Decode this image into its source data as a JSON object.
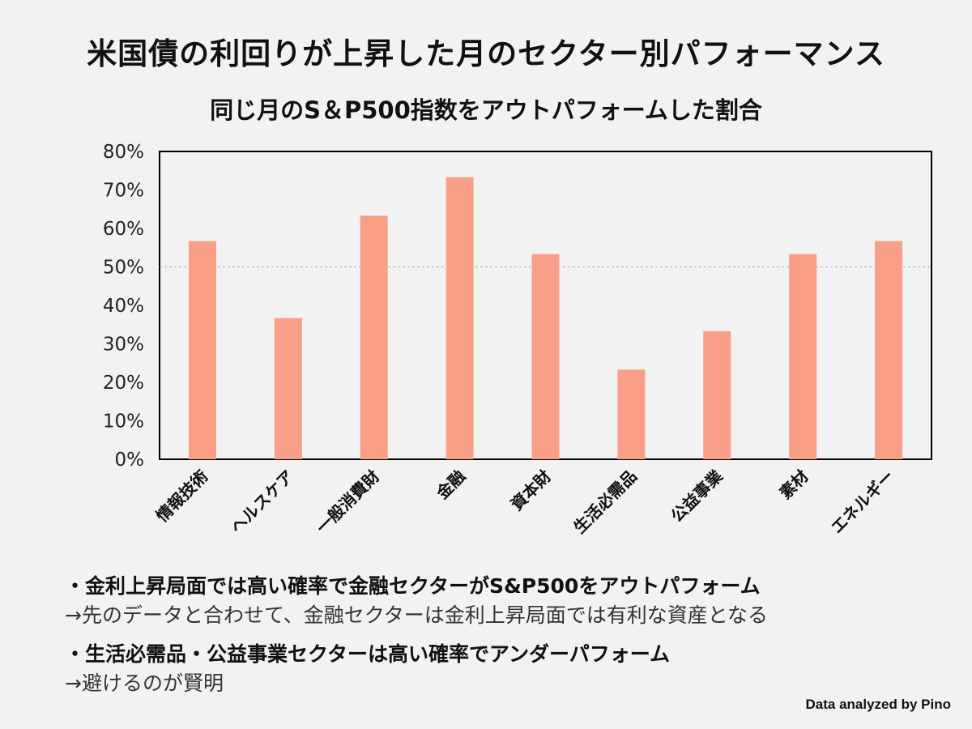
{
  "title": "米国債の利回りが上昇した月のセクター別パフォーマンス",
  "chart_data": {
    "type": "bar",
    "title": "同じ月のS＆P500指数をアウトパフォームした割合",
    "categories": [
      "情報技術",
      "ヘルスケア",
      "一般消費財",
      "金融",
      "資本財",
      "生活必需品",
      "公益事業",
      "素材",
      "エネルギー"
    ],
    "values": [
      56.7,
      36.7,
      63.3,
      73.3,
      53.3,
      23.3,
      33.3,
      53.3,
      56.7
    ],
    "ylim": [
      0,
      80
    ],
    "yticks": [
      "0%",
      "10%",
      "20%",
      "30%",
      "40%",
      "50%",
      "60%",
      "70%",
      "80%"
    ],
    "reference_line": 50,
    "grid": false,
    "bar_color": "#f99f88",
    "reference_line_color": "#aaaaaa"
  },
  "notes": [
    {
      "head": "・金利上昇局面では高い確率で金融セクターがS&P500をアウトパフォーム",
      "sub": "→先のデータと合わせて、金融セクターは金利上昇局面では有利な資産となる"
    },
    {
      "head": "・生活必需品・公益事業セクターは高い確率でアンダーパフォーム",
      "sub": "→避けるのが賢明"
    }
  ],
  "credit": "Data analyzed by Pino"
}
